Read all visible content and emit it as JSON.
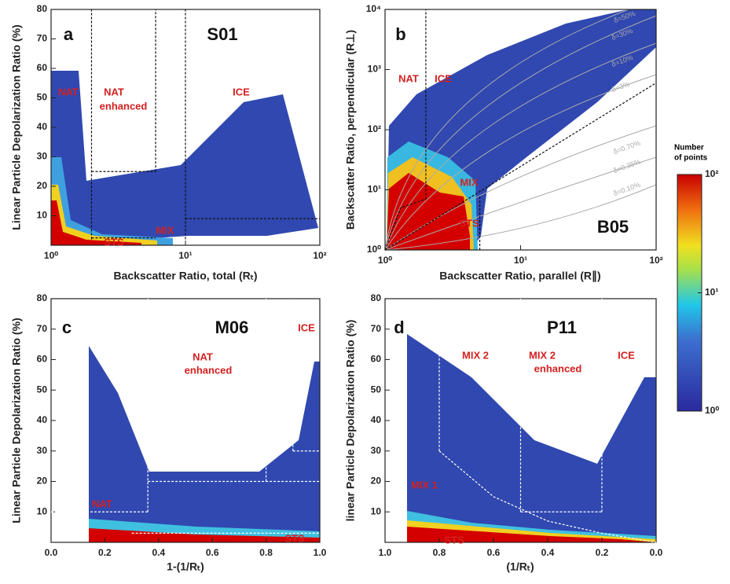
{
  "chart_data": [
    {
      "type": "heatmap",
      "panel": "a",
      "title": "S01",
      "xlabel": "Backscatter Ratio, total (Rₜ)",
      "ylabel": "Linear Particle Depolarization Ratio (%)",
      "xscale": "log",
      "yscale": "linear",
      "xlim": [
        1,
        100
      ],
      "ylim": [
        0,
        80
      ],
      "xticks": [
        {
          "value": 1,
          "label": "10⁰"
        },
        {
          "value": 10,
          "label": "10¹"
        },
        {
          "value": 100,
          "label": "10²"
        }
      ],
      "yticks": [
        10,
        20,
        30,
        40,
        50,
        60,
        70,
        80
      ],
      "annotations": [
        "NAT",
        "NAT",
        "enhanced",
        "ICE",
        "MIX",
        "STS"
      ],
      "boundaries": [
        [
          [
            2,
            2
          ],
          [
            2,
            80
          ]
        ],
        [
          [
            6,
            25
          ],
          [
            6,
            80
          ]
        ],
        [
          [
            10,
            2
          ],
          [
            10,
            80
          ]
        ],
        [
          [
            2,
            25
          ],
          [
            6,
            25
          ]
        ],
        [
          [
            10,
            9
          ],
          [
            100,
            9
          ]
        ],
        [
          [
            2,
            2.5
          ],
          [
            6,
            2.5
          ]
        ]
      ]
    },
    {
      "type": "heatmap",
      "panel": "b",
      "title": "B05",
      "xlabel": "Backscatter Ratio, parallel (R∥)",
      "ylabel": "Backscatter Ratio, perpendicular (R⊥)",
      "xscale": "log",
      "yscale": "log",
      "xlim": [
        1,
        100
      ],
      "ylim": [
        1,
        10000
      ],
      "xticks": [
        {
          "value": 1,
          "label": "10⁰"
        },
        {
          "value": 10,
          "label": "10¹"
        },
        {
          "value": 100,
          "label": "10²"
        }
      ],
      "yticks": [
        {
          "value": 1,
          "label": "10⁰"
        },
        {
          "value": 10,
          "label": "10¹"
        },
        {
          "value": 100,
          "label": "10²"
        },
        {
          "value": 1000,
          "label": "10³"
        },
        {
          "value": 10000,
          "label": "10⁴"
        }
      ],
      "annotations": [
        "NAT",
        "ICE",
        "MIX",
        "STS",
        "δ=50%",
        "δ=30%",
        "δ=10%",
        "δ=3%",
        "δ=0.70%",
        "δ=0.35%",
        "δ=0.10%"
      ],
      "boundaries": [
        [
          [
            2,
            7
          ],
          [
            2,
            10000
          ]
        ],
        [
          [
            5,
            1
          ],
          [
            5,
            8
          ]
        ],
        [
          [
            1,
            1
          ],
          [
            100,
            600
          ]
        ],
        [
          [
            1,
            1
          ],
          [
            1.3,
            5
          ],
          [
            2,
            7
          ]
        ]
      ]
    },
    {
      "type": "heatmap",
      "panel": "c",
      "title": "M06",
      "xlabel": "1-(1/Rₜ)",
      "ylabel": "Linear Particle Depolarization Ratio (%)",
      "xscale": "linear",
      "yscale": "linear",
      "xlim": [
        0,
        1
      ],
      "ylim": [
        0,
        80
      ],
      "xticks": [
        {
          "value": 0,
          "label": "0.0"
        },
        {
          "value": 0.2,
          "label": "0.2"
        },
        {
          "value": 0.4,
          "label": "0.4"
        },
        {
          "value": 0.6,
          "label": "0.6"
        },
        {
          "value": 0.8,
          "label": "0.8"
        },
        {
          "value": 1,
          "label": "1.0"
        }
      ],
      "yticks": [
        10,
        20,
        30,
        40,
        50,
        60,
        70,
        80
      ],
      "annotations": [
        "NAT",
        "enhanced",
        "ICE",
        "NAT",
        "STS"
      ],
      "boundaries": [
        [
          [
            0,
            10
          ],
          [
            0.36,
            10
          ]
        ],
        [
          [
            0.36,
            10
          ],
          [
            0.36,
            80
          ]
        ],
        [
          [
            0.36,
            20
          ],
          [
            1,
            20
          ]
        ],
        [
          [
            0.8,
            20
          ],
          [
            0.8,
            80
          ]
        ],
        [
          [
            0.9,
            30
          ],
          [
            0.9,
            80
          ]
        ],
        [
          [
            0.9,
            30
          ],
          [
            1,
            30
          ]
        ],
        [
          [
            0.3,
            3
          ],
          [
            1,
            3
          ]
        ]
      ]
    },
    {
      "type": "heatmap",
      "panel": "d",
      "title": "P11",
      "xlabel": "(1/Rₜ)",
      "ylabel": "linear Particle Depolarization Ratio (%)",
      "xscale": "linear",
      "yscale": "linear",
      "xlim": [
        1,
        0
      ],
      "ylim": [
        0,
        80
      ],
      "xticks": [
        {
          "value": 1,
          "label": "1.0"
        },
        {
          "value": 0.8,
          "label": "0.8"
        },
        {
          "value": 0.6,
          "label": "0.6"
        },
        {
          "value": 0.4,
          "label": "0.4"
        },
        {
          "value": 0.2,
          "label": "0.2"
        },
        {
          "value": 0,
          "label": "0.0"
        }
      ],
      "yticks": [
        10,
        20,
        30,
        40,
        50,
        60,
        70,
        80
      ],
      "annotations": [
        "MIX 2",
        "MIX 2",
        "enhanced",
        "ICE",
        "MIX 1",
        "STS"
      ],
      "boundaries": [
        [
          [
            0.8,
            30
          ],
          [
            0.8,
            80
          ]
        ],
        [
          [
            0.5,
            10
          ],
          [
            0.5,
            80
          ]
        ],
        [
          [
            0.2,
            10
          ],
          [
            0.2,
            80
          ]
        ],
        [
          [
            0.5,
            10
          ],
          [
            0.2,
            10
          ]
        ],
        [
          [
            0.8,
            30
          ],
          [
            0.6,
            15
          ],
          [
            0.4,
            7
          ],
          [
            0.2,
            3
          ],
          [
            0,
            0
          ]
        ]
      ]
    },
    {
      "type": "colorbar",
      "title": [
        "Number",
        "of points"
      ],
      "yscale": "log",
      "ylim": [
        1,
        100
      ],
      "yticks": [
        {
          "value": 1,
          "label": "10⁰"
        },
        {
          "value": 10,
          "label": "10¹"
        },
        {
          "value": 100,
          "label": "10²"
        }
      ]
    }
  ]
}
